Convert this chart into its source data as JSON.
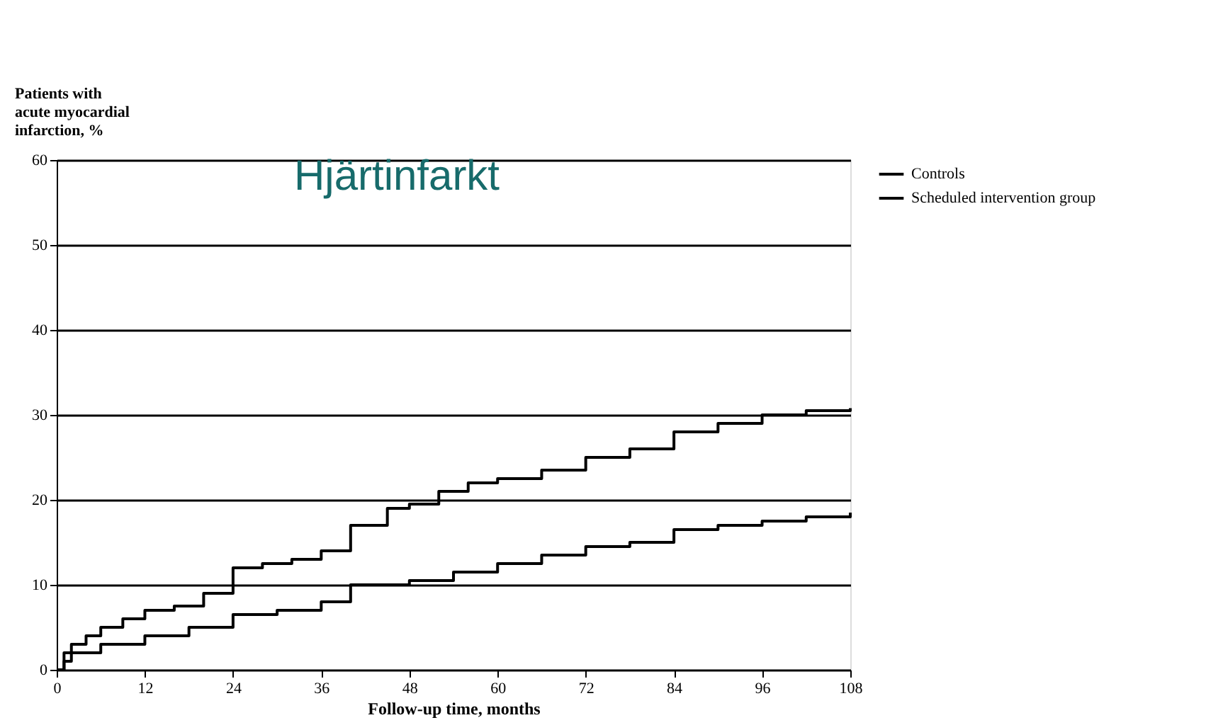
{
  "chart_data": {
    "type": "step",
    "title": "Hjärtinfarkt",
    "xlabel": "Follow-up time, months",
    "ylabel": "Patients with\nacute myocardial\ninfarction, %",
    "xlim": [
      0,
      108
    ],
    "xticks": [
      0,
      12,
      24,
      36,
      48,
      60,
      72,
      84,
      96,
      108
    ],
    "ylim": [
      0,
      60
    ],
    "yticks": [
      0,
      10,
      20,
      30,
      40,
      50,
      60
    ],
    "grid": "y",
    "legend": "right",
    "line_style": "solid",
    "marker": "none",
    "series": [
      {
        "name": "Controls",
        "color": "#000000",
        "x": [
          0,
          1,
          2,
          4,
          6,
          9,
          12,
          16,
          20,
          24,
          28,
          32,
          36,
          40,
          45,
          48,
          52,
          56,
          60,
          66,
          72,
          78,
          84,
          90,
          96,
          102,
          108
        ],
        "values": [
          0,
          2,
          3,
          4,
          5,
          6,
          7,
          7.5,
          9,
          12,
          12.5,
          13,
          14,
          17,
          19,
          19.5,
          21,
          22,
          22.5,
          23.5,
          25,
          26,
          28,
          29,
          30,
          30.5,
          30.8
        ]
      },
      {
        "name": "Scheduled intervention group",
        "color": "#000000",
        "x": [
          0,
          1,
          2,
          6,
          12,
          18,
          24,
          30,
          36,
          40,
          48,
          54,
          60,
          66,
          72,
          78,
          84,
          90,
          96,
          102,
          108
        ],
        "values": [
          0,
          1,
          2,
          3,
          4,
          5,
          6.5,
          7,
          8,
          10,
          10.5,
          11.5,
          12.5,
          13.5,
          14.5,
          15,
          16.5,
          17,
          17.5,
          18,
          18.5
        ]
      }
    ]
  }
}
